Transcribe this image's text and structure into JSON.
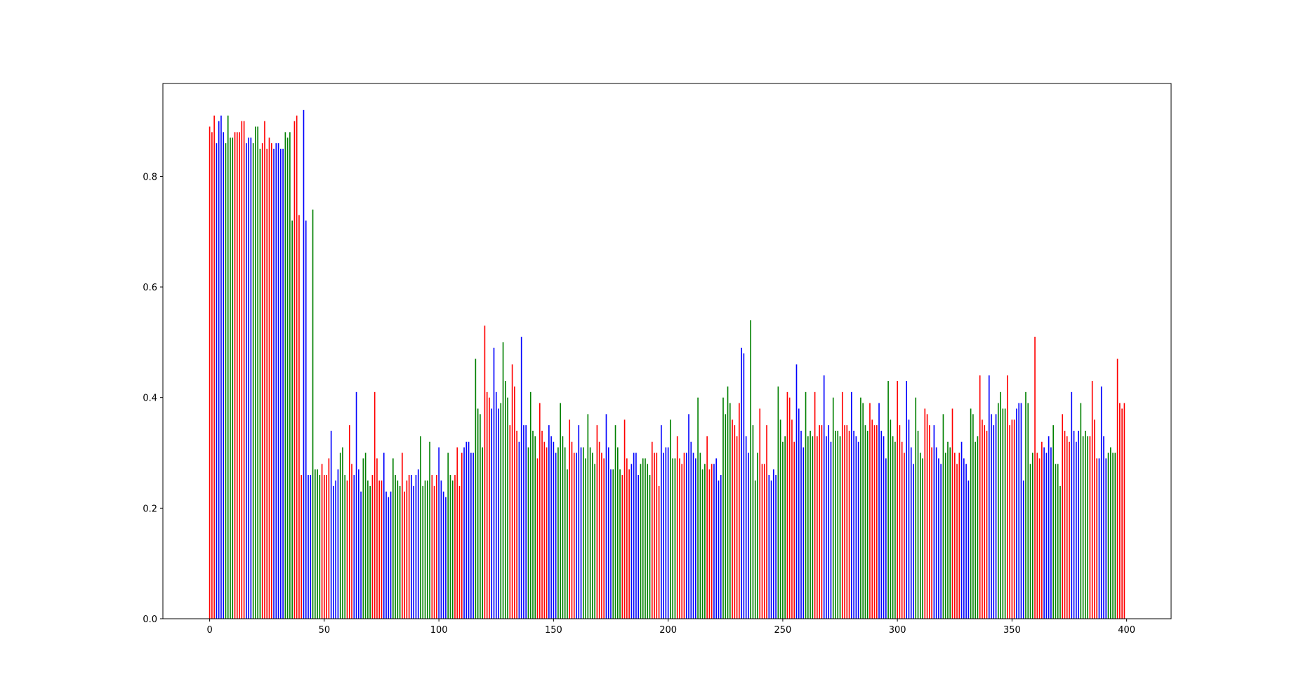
{
  "chart_data": {
    "type": "bar",
    "x": [
      0,
      1,
      2,
      3,
      4,
      5,
      6,
      7,
      8,
      9,
      10,
      11,
      12,
      13,
      14,
      15,
      16,
      17,
      18,
      19,
      20,
      21,
      22,
      23,
      24,
      25,
      26,
      27,
      28,
      29,
      30,
      31,
      32,
      33,
      34,
      35,
      36,
      37,
      38,
      39,
      40,
      41,
      42,
      43,
      44,
      45,
      46,
      47,
      48,
      49,
      50,
      51,
      52,
      53,
      54,
      55,
      56,
      57,
      58,
      59,
      60,
      61,
      62,
      63,
      64,
      65,
      66,
      67,
      68,
      69,
      70,
      71,
      72,
      73,
      74,
      75,
      76,
      77,
      78,
      79,
      80,
      81,
      82,
      83,
      84,
      85,
      86,
      87,
      88,
      89,
      90,
      91,
      92,
      93,
      94,
      95,
      96,
      97,
      98,
      99,
      100,
      101,
      102,
      103,
      104,
      105,
      106,
      107,
      108,
      109,
      110,
      111,
      112,
      113,
      114,
      115,
      116,
      117,
      118,
      119,
      120,
      121,
      122,
      123,
      124,
      125,
      126,
      127,
      128,
      129,
      130,
      131,
      132,
      133,
      134,
      135,
      136,
      137,
      138,
      139,
      140,
      141,
      142,
      143,
      144,
      145,
      146,
      147,
      148,
      149,
      150,
      151,
      152,
      153,
      154,
      155,
      156,
      157,
      158,
      159,
      160,
      161,
      162,
      163,
      164,
      165,
      166,
      167,
      168,
      169,
      170,
      171,
      172,
      173,
      174,
      175,
      176,
      177,
      178,
      179,
      180,
      181,
      182,
      183,
      184,
      185,
      186,
      187,
      188,
      189,
      190,
      191,
      192,
      193,
      194,
      195,
      196,
      197,
      198,
      199,
      200,
      201,
      202,
      203,
      204,
      205,
      206,
      207,
      208,
      209,
      210,
      211,
      212,
      213,
      214,
      215,
      216,
      217,
      218,
      219,
      220,
      221,
      222,
      223,
      224,
      225,
      226,
      227,
      228,
      229,
      230,
      231,
      232,
      233,
      234,
      235,
      236,
      237,
      238,
      239,
      240,
      241,
      242,
      243,
      244,
      245,
      246,
      247,
      248,
      249,
      250,
      251,
      252,
      253,
      254,
      255,
      256,
      257,
      258,
      259,
      260,
      261,
      262,
      263,
      264,
      265,
      266,
      267,
      268,
      269,
      270,
      271,
      272,
      273,
      274,
      275,
      276,
      277,
      278,
      279,
      280,
      281,
      282,
      283,
      284,
      285,
      286,
      287,
      288,
      289,
      290,
      291,
      292,
      293,
      294,
      295,
      296,
      297,
      298,
      299,
      300,
      301,
      302,
      303,
      304,
      305,
      306,
      307,
      308,
      309,
      310,
      311,
      312,
      313,
      314,
      315,
      316,
      317,
      318,
      319,
      320,
      321,
      322,
      323,
      324,
      325,
      326,
      327,
      328,
      329,
      330,
      331,
      332,
      333,
      334,
      335,
      336,
      337,
      338,
      339,
      340,
      341,
      342,
      343,
      344,
      345,
      346,
      347,
      348,
      349,
      350,
      351,
      352,
      353,
      354,
      355,
      356,
      357,
      358,
      359,
      360,
      361,
      362,
      363,
      364,
      365,
      366,
      367,
      368,
      369,
      370,
      371,
      372,
      373,
      374,
      375,
      376,
      377,
      378,
      379,
      380,
      381,
      382,
      383,
      384,
      385,
      386,
      387,
      388,
      389,
      390,
      391,
      392,
      393,
      394,
      395,
      396,
      397,
      398,
      399
    ],
    "values": [
      0.89,
      0.88,
      0.91,
      0.86,
      0.9,
      0.91,
      0.88,
      0.86,
      0.91,
      0.87,
      0.87,
      0.88,
      0.88,
      0.88,
      0.9,
      0.9,
      0.86,
      0.87,
      0.87,
      0.86,
      0.89,
      0.89,
      0.85,
      0.86,
      0.9,
      0.85,
      0.87,
      0.86,
      0.85,
      0.86,
      0.86,
      0.85,
      0.85,
      0.88,
      0.87,
      0.88,
      0.72,
      0.9,
      0.91,
      0.73,
      0.26,
      0.92,
      0.72,
      0.26,
      0.26,
      0.74,
      0.27,
      0.27,
      0.26,
      0.28,
      0.26,
      0.26,
      0.29,
      0.34,
      0.24,
      0.25,
      0.27,
      0.3,
      0.31,
      0.26,
      0.25,
      0.35,
      0.28,
      0.26,
      0.41,
      0.27,
      0.23,
      0.29,
      0.3,
      0.25,
      0.24,
      0.26,
      0.41,
      0.29,
      0.25,
      0.25,
      0.3,
      0.23,
      0.22,
      0.23,
      0.29,
      0.26,
      0.25,
      0.24,
      0.3,
      0.23,
      0.25,
      0.26,
      0.26,
      0.24,
      0.26,
      0.27,
      0.33,
      0.24,
      0.25,
      0.25,
      0.32,
      0.26,
      0.24,
      0.26,
      0.31,
      0.25,
      0.23,
      0.22,
      0.3,
      0.26,
      0.25,
      0.26,
      0.31,
      0.24,
      0.3,
      0.31,
      0.32,
      0.32,
      0.3,
      0.3,
      0.47,
      0.38,
      0.37,
      0.31,
      0.53,
      0.41,
      0.4,
      0.38,
      0.49,
      0.41,
      0.38,
      0.39,
      0.5,
      0.43,
      0.4,
      0.35,
      0.46,
      0.42,
      0.34,
      0.32,
      0.51,
      0.35,
      0.35,
      0.31,
      0.41,
      0.34,
      0.33,
      0.29,
      0.39,
      0.34,
      0.32,
      0.31,
      0.35,
      0.33,
      0.32,
      0.3,
      0.31,
      0.39,
      0.33,
      0.31,
      0.27,
      0.36,
      0.32,
      0.3,
      0.3,
      0.35,
      0.31,
      0.31,
      0.29,
      0.37,
      0.31,
      0.3,
      0.28,
      0.35,
      0.32,
      0.3,
      0.29,
      0.37,
      0.31,
      0.27,
      0.27,
      0.35,
      0.31,
      0.27,
      0.26,
      0.36,
      0.29,
      0.27,
      0.28,
      0.3,
      0.3,
      0.26,
      0.28,
      0.29,
      0.29,
      0.28,
      0.26,
      0.32,
      0.3,
      0.3,
      0.24,
      0.35,
      0.3,
      0.31,
      0.31,
      0.36,
      0.29,
      0.29,
      0.33,
      0.29,
      0.28,
      0.3,
      0.3,
      0.37,
      0.32,
      0.3,
      0.29,
      0.4,
      0.3,
      0.27,
      0.28,
      0.33,
      0.27,
      0.28,
      0.28,
      0.29,
      0.25,
      0.26,
      0.4,
      0.37,
      0.42,
      0.39,
      0.36,
      0.35,
      0.33,
      0.39,
      0.49,
      0.48,
      0.33,
      0.3,
      0.54,
      0.35,
      0.25,
      0.3,
      0.38,
      0.28,
      0.28,
      0.35,
      0.26,
      0.25,
      0.27,
      0.26,
      0.42,
      0.36,
      0.32,
      0.33,
      0.41,
      0.4,
      0.36,
      0.32,
      0.46,
      0.38,
      0.34,
      0.31,
      0.41,
      0.33,
      0.34,
      0.33,
      0.41,
      0.33,
      0.35,
      0.35,
      0.44,
      0.33,
      0.35,
      0.32,
      0.4,
      0.34,
      0.34,
      0.33,
      0.41,
      0.35,
      0.35,
      0.34,
      0.41,
      0.34,
      0.33,
      0.32,
      0.4,
      0.39,
      0.35,
      0.34,
      0.39,
      0.36,
      0.35,
      0.35,
      0.39,
      0.34,
      0.33,
      0.29,
      0.43,
      0.36,
      0.33,
      0.32,
      0.43,
      0.35,
      0.32,
      0.3,
      0.43,
      0.36,
      0.31,
      0.28,
      0.4,
      0.34,
      0.3,
      0.29,
      0.38,
      0.37,
      0.35,
      0.31,
      0.35,
      0.31,
      0.29,
      0.28,
      0.37,
      0.3,
      0.32,
      0.31,
      0.38,
      0.3,
      0.28,
      0.3,
      0.32,
      0.29,
      0.28,
      0.25,
      0.38,
      0.37,
      0.32,
      0.33,
      0.44,
      0.36,
      0.35,
      0.34,
      0.44,
      0.37,
      0.35,
      0.37,
      0.39,
      0.41,
      0.38,
      0.38,
      0.44,
      0.35,
      0.36,
      0.36,
      0.38,
      0.39,
      0.39,
      0.25,
      0.41,
      0.39,
      0.28,
      0.3,
      0.51,
      0.3,
      0.29,
      0.32,
      0.31,
      0.3,
      0.33,
      0.31,
      0.35,
      0.28,
      0.28,
      0.24,
      0.37,
      0.34,
      0.33,
      0.32,
      0.41,
      0.34,
      0.32,
      0.34,
      0.39,
      0.33,
      0.34,
      0.33,
      0.33,
      0.43,
      0.36,
      0.29,
      0.29,
      0.42,
      0.33,
      0.29,
      0.3,
      0.31,
      0.3,
      0.3,
      0.47,
      0.39,
      0.38,
      0.39
    ],
    "colors": [
      "red",
      "red",
      "red",
      "blue",
      "blue",
      "blue",
      "blue",
      "green",
      "green",
      "green",
      "green",
      "red",
      "red",
      "red",
      "red",
      "red",
      "blue",
      "blue",
      "blue",
      "green",
      "green",
      "green",
      "green",
      "red",
      "red",
      "red",
      "red",
      "red",
      "blue",
      "blue",
      "blue",
      "blue",
      "blue",
      "green",
      "green",
      "green",
      "green",
      "red",
      "red",
      "red",
      "red",
      "blue",
      "blue",
      "blue",
      "blue",
      "green",
      "green",
      "green",
      "green",
      "red",
      "red",
      "red",
      "red",
      "blue",
      "blue",
      "blue",
      "blue",
      "green",
      "green",
      "green",
      "red",
      "red",
      "red",
      "blue",
      "blue",
      "blue",
      "blue",
      "green",
      "green",
      "green",
      "green",
      "red",
      "red",
      "red",
      "red",
      "red",
      "blue",
      "blue",
      "blue",
      "blue",
      "green",
      "green",
      "green",
      "green",
      "red",
      "red",
      "red",
      "red",
      "blue",
      "blue",
      "blue",
      "blue",
      "green",
      "green",
      "green",
      "green",
      "green",
      "red",
      "red",
      "red",
      "blue",
      "blue",
      "blue",
      "blue",
      "green",
      "green",
      "green",
      "red",
      "red",
      "red",
      "red",
      "blue",
      "blue",
      "blue",
      "blue",
      "blue",
      "green",
      "green",
      "green",
      "green",
      "red",
      "red",
      "red",
      "blue",
      "blue",
      "blue",
      "blue",
      "green",
      "green",
      "green",
      "green",
      "red",
      "red",
      "red",
      "red",
      "blue",
      "blue",
      "blue",
      "blue",
      "green",
      "green",
      "green",
      "green",
      "red",
      "red",
      "red",
      "red",
      "red",
      "blue",
      "blue",
      "blue",
      "blue",
      "green",
      "green",
      "green",
      "green",
      "green",
      "red",
      "red",
      "red",
      "blue",
      "blue",
      "blue",
      "green",
      "green",
      "green",
      "green",
      "green",
      "green",
      "red",
      "red",
      "red",
      "red",
      "blue",
      "blue",
      "blue",
      "green",
      "green",
      "green",
      "green",
      "red",
      "red",
      "red",
      "red",
      "blue",
      "blue",
      "blue",
      "blue",
      "green",
      "green",
      "green",
      "green",
      "green",
      "red",
      "red",
      "red",
      "red",
      "blue",
      "blue",
      "blue",
      "blue",
      "green",
      "green",
      "green",
      "red",
      "red",
      "red",
      "red",
      "blue",
      "blue",
      "blue",
      "blue",
      "blue",
      "green",
      "green",
      "green",
      "green",
      "red",
      "red",
      "red",
      "blue",
      "blue",
      "blue",
      "blue",
      "green",
      "green",
      "green",
      "green",
      "red",
      "red",
      "red",
      "red",
      "blue",
      "blue",
      "blue",
      "blue",
      "green",
      "green",
      "green",
      "green",
      "red",
      "red",
      "red",
      "red",
      "blue",
      "blue",
      "blue",
      "blue",
      "green",
      "green",
      "green",
      "green",
      "red",
      "red",
      "red",
      "red",
      "blue",
      "blue",
      "blue",
      "blue",
      "green",
      "green",
      "green",
      "green",
      "red",
      "red",
      "red",
      "red",
      "blue",
      "blue",
      "blue",
      "blue",
      "green",
      "green",
      "green",
      "green",
      "red",
      "red",
      "red",
      "red",
      "blue",
      "blue",
      "blue",
      "blue",
      "green",
      "green",
      "green",
      "green",
      "red",
      "red",
      "red",
      "red",
      "blue",
      "blue",
      "blue",
      "blue",
      "green",
      "green",
      "green",
      "green",
      "red",
      "red",
      "red",
      "red",
      "blue",
      "blue",
      "blue",
      "blue",
      "green",
      "green",
      "green",
      "green",
      "red",
      "red",
      "red",
      "red",
      "blue",
      "blue",
      "blue",
      "blue",
      "green",
      "green",
      "green",
      "green",
      "red",
      "red",
      "red",
      "red",
      "blue",
      "blue",
      "blue",
      "blue",
      "green",
      "green",
      "green",
      "green",
      "red",
      "red",
      "red",
      "red",
      "blue",
      "blue",
      "blue",
      "blue",
      "green",
      "green",
      "green",
      "green",
      "red",
      "red",
      "red",
      "red",
      "blue",
      "blue",
      "blue",
      "blue",
      "green",
      "green",
      "green",
      "green",
      "red",
      "red",
      "red",
      "red",
      "blue",
      "blue",
      "blue",
      "blue",
      "green",
      "green",
      "green",
      "green",
      "red",
      "red",
      "red",
      "red",
      "blue",
      "blue",
      "blue",
      "blue",
      "green",
      "green",
      "green",
      "green",
      "red",
      "red",
      "red",
      "red",
      "blue",
      "blue",
      "blue",
      "blue",
      "green",
      "green",
      "green",
      "green",
      "red",
      "red",
      "red",
      "red"
    ],
    "xlim": [
      -20.4,
      419.4
    ],
    "xticks": [
      0,
      50,
      100,
      150,
      200,
      250,
      300,
      350,
      400
    ],
    "ylim": [
      0,
      0.968
    ],
    "yticks": [
      {
        "value": 0,
        "label": "0.0"
      },
      0.2,
      0.4,
      0.6,
      0.8
    ]
  }
}
